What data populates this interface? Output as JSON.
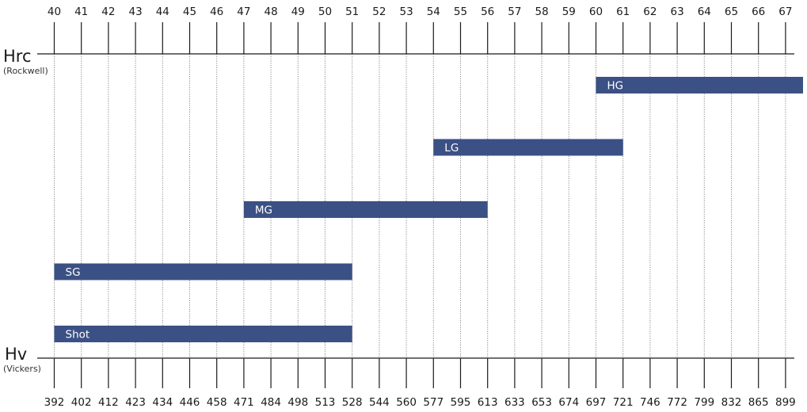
{
  "chart_data": {
    "type": "bar",
    "orientation": "horizontal",
    "top_axis": {
      "title": "Hrc",
      "subtitle": "(Rockwell)",
      "ticks": [
        "40",
        "41",
        "42",
        "43",
        "44",
        "45",
        "46",
        "47",
        "48",
        "49",
        "50",
        "51",
        "52",
        "53",
        "54",
        "55",
        "56",
        "57",
        "58",
        "59",
        "60",
        "61",
        "62",
        "63",
        "64",
        "65",
        "66",
        "67"
      ]
    },
    "bottom_axis": {
      "title": "Hv",
      "subtitle": "(Vickers)",
      "ticks": [
        "392",
        "402",
        "412",
        "423",
        "434",
        "446",
        "458",
        "471",
        "484",
        "498",
        "513",
        "528",
        "544",
        "560",
        "577",
        "595",
        "613",
        "633",
        "653",
        "674",
        "697",
        "721",
        "746",
        "772",
        "799",
        "832",
        "865",
        "899"
      ]
    },
    "grid": true,
    "series": [
      {
        "label": "HG",
        "start": 60,
        "end": 67.9
      },
      {
        "label": "LG",
        "start": 54,
        "end": 61
      },
      {
        "label": "MG",
        "start": 47,
        "end": 56
      },
      {
        "label": "SG",
        "start": 40,
        "end": 51
      },
      {
        "label": "Shot",
        "start": 40,
        "end": 51
      }
    ],
    "bar_color": "#3b5084"
  }
}
